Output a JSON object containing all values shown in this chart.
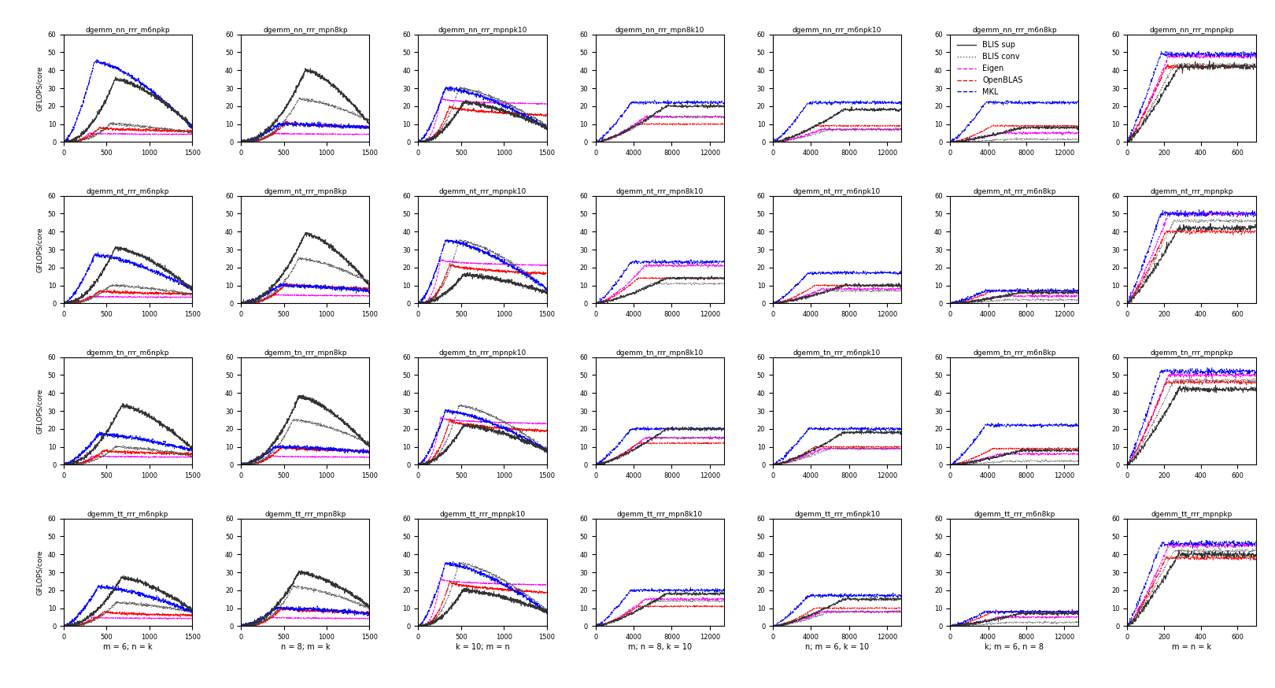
{
  "nrows": 4,
  "ncols": 7,
  "figsize": [
    16.2,
    8.74
  ],
  "ylim": [
    0,
    60
  ],
  "ylabel": "GFLOPS/core",
  "legend_labels": [
    "BLIS sup",
    "BLIS conv",
    "Eigen",
    "OpenBLAS",
    "MKL"
  ],
  "legend_colors": [
    "#333333",
    "#555555",
    "#ff00ff",
    "#ff0000",
    "#0000ff"
  ],
  "legend_styles": [
    "-",
    ":",
    "--",
    "--",
    "--"
  ],
  "row_prefixes": [
    "dgemm_nn_rrr_",
    "dgemm_nt_rrr_",
    "dgemm_tn_rrr_",
    "dgemm_tt_rrr_"
  ],
  "col_suffixes": [
    "m6npkp",
    "mpn8kp",
    "mpnpk10",
    "mpn8k10",
    "m6npk10",
    "m6n8kp",
    "mpnpkp"
  ],
  "xlabels": [
    "m = 6; n = k",
    "n = 8; m = k",
    "k = 10; m = n",
    "m; n = 8, k = 10",
    "n; m = 6, k = 10",
    "k; m = 6, n = 8",
    "m = n = k"
  ],
  "seed": 42
}
